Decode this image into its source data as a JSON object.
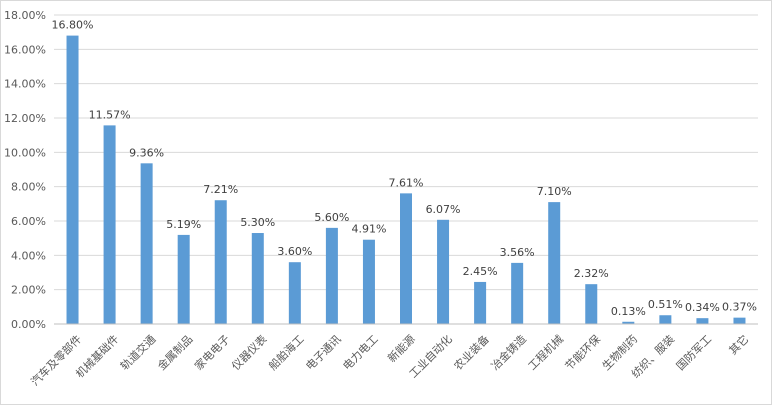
{
  "chart_data": {
    "type": "bar",
    "title": "",
    "xlabel": "",
    "ylabel": "",
    "ylim": [
      0,
      18
    ],
    "yticks": [
      "0.00%",
      "2.00%",
      "4.00%",
      "6.00%",
      "8.00%",
      "10.00%",
      "12.00%",
      "14.00%",
      "16.00%",
      "18.00%"
    ],
    "grid": true,
    "legend": "none",
    "bar_color": "#5b9bd5",
    "categories": [
      "汽车及零部件",
      "机械基础件",
      "轨道交通",
      "金属制品",
      "家电电子",
      "仪器仪表",
      "船舶海工",
      "电子通讯",
      "电力电工",
      "新能源",
      "工业自动化",
      "农业装备",
      "冶金铸造",
      "工程机械",
      "节能环保",
      "生物制药",
      "纺织、服装",
      "国防军工",
      "其它"
    ],
    "values": [
      16.8,
      11.57,
      9.36,
      5.19,
      7.21,
      5.3,
      3.6,
      5.6,
      4.91,
      7.61,
      6.07,
      2.45,
      3.56,
      7.1,
      2.32,
      0.13,
      0.51,
      0.34,
      0.37
    ],
    "data_labels": [
      "16.80%",
      "11.57%",
      "9.36%",
      "5.19%",
      "7.21%",
      "5.30%",
      "3.60%",
      "5.60%",
      "4.91%",
      "7.61%",
      "6.07%",
      "2.45%",
      "3.56%",
      "7.10%",
      "2.32%",
      "0.13%",
      "0.51%",
      "0.34%",
      "0.37%"
    ]
  }
}
